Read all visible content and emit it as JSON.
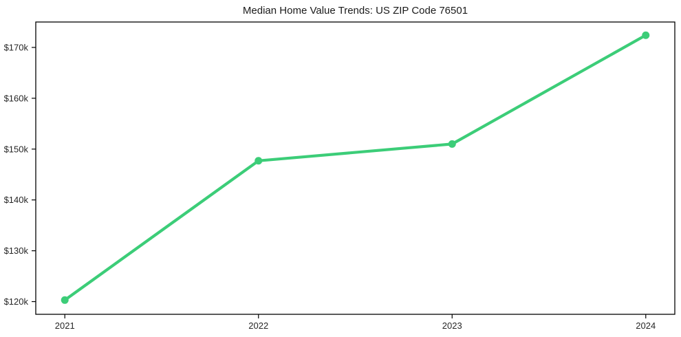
{
  "chart_data": {
    "type": "line",
    "title": "Median Home Value Trends: US ZIP Code 76501",
    "categories": [
      "2021",
      "2022",
      "2023",
      "2024"
    ],
    "x": [
      2021,
      2022,
      2023,
      2024
    ],
    "values": [
      120300,
      147700,
      151000,
      172400
    ],
    "xlabel": "",
    "ylabel": "",
    "yticks": [
      120000,
      130000,
      140000,
      150000,
      160000,
      170000
    ],
    "ytick_labels": [
      "$120k",
      "$130k",
      "$140k",
      "$150k",
      "$160k",
      "$170k"
    ],
    "xlim": [
      2020.85,
      2024.15
    ],
    "ylim": [
      117500,
      175000
    ],
    "grid": false,
    "legend": "none",
    "line_color": "#3ccd78",
    "marker_color": "#3ccd78",
    "axis_color": "#000000",
    "tick_label_color": "#262626",
    "background_color": "#ffffff"
  }
}
